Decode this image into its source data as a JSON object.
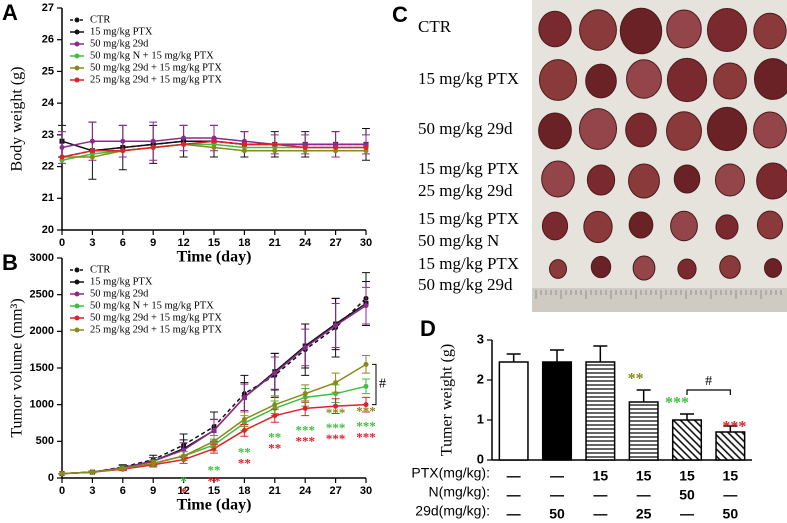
{
  "chart_data": [
    {
      "type": "line",
      "panel": "A",
      "ylabel": "Body weight (g)",
      "xlabel": "Time (day)",
      "x": [
        0,
        3,
        6,
        9,
        12,
        15,
        18,
        21,
        24,
        27,
        30
      ],
      "xlim": [
        0,
        30
      ],
      "xticks": [
        0,
        3,
        6,
        9,
        12,
        15,
        18,
        21,
        24,
        27,
        30
      ],
      "ylim": [
        20,
        27
      ],
      "yticks": [
        20,
        21,
        22,
        23,
        24,
        25,
        26,
        27
      ],
      "series": [
        {
          "name": "CTR",
          "color": "#111111",
          "dash": true,
          "marker": "circle",
          "values": [
            22.3,
            22.5,
            22.6,
            22.7,
            22.8,
            22.8,
            22.7,
            22.7,
            22.7,
            22.7,
            22.7
          ]
        },
        {
          "name": "15 mg/kg PTX",
          "color": "#111111",
          "dash": false,
          "marker": "square",
          "values": [
            22.8,
            22.5,
            22.6,
            22.7,
            22.8,
            22.8,
            22.7,
            22.7,
            22.7,
            22.7,
            22.7
          ],
          "errors": [
            0.5,
            0.9,
            0.7,
            0.6,
            0.5,
            0.5,
            0.4,
            0.4,
            0.4,
            0.4,
            0.5
          ]
        },
        {
          "name": "50 mg/kg 29d",
          "color": "#8e2a8e",
          "dash": false,
          "marker": "circle",
          "values": [
            22.6,
            22.8,
            22.8,
            22.8,
            22.9,
            22.9,
            22.8,
            22.7,
            22.7,
            22.7,
            22.7
          ],
          "errors": [
            0.5,
            0.6,
            0.5,
            0.6,
            0.4,
            0.4,
            0.3,
            0.3,
            0.3,
            0.4,
            0.3
          ]
        },
        {
          "name": "50 mg/kg N + 15 mg/kg PTX",
          "color": "#3fbf3f",
          "dash": false,
          "marker": "circle",
          "values": [
            22.2,
            22.4,
            22.5,
            22.6,
            22.7,
            22.7,
            22.6,
            22.6,
            22.6,
            22.6,
            22.6
          ]
        },
        {
          "name": "50 mg/kg 29d + 15 mg/kg PTX",
          "color": "#8a8a1a",
          "dash": false,
          "marker": "circle",
          "values": [
            22.3,
            22.3,
            22.5,
            22.6,
            22.7,
            22.6,
            22.5,
            22.5,
            22.5,
            22.5,
            22.5
          ]
        },
        {
          "name": "25 mg/kg 29d + 15 mg/kg PTX",
          "color": "#e0202a",
          "dash": false,
          "marker": "circle",
          "values": [
            22.3,
            22.5,
            22.5,
            22.6,
            22.7,
            22.8,
            22.7,
            22.7,
            22.6,
            22.6,
            22.6
          ]
        }
      ]
    },
    {
      "type": "line",
      "panel": "B",
      "ylabel": "Tumor volume (mm³)",
      "xlabel": "Time (day)",
      "x": [
        0,
        3,
        6,
        9,
        12,
        15,
        18,
        21,
        24,
        27,
        30
      ],
      "xlim": [
        0,
        30
      ],
      "xticks": [
        0,
        3,
        6,
        9,
        12,
        15,
        18,
        21,
        24,
        27,
        30
      ],
      "ylim": [
        0,
        3000
      ],
      "yticks": [
        0,
        500,
        1000,
        1500,
        2000,
        2500,
        3000
      ],
      "bracket_label": "#",
      "series": [
        {
          "name": "CTR",
          "color": "#111111",
          "dash": true,
          "marker": "circle",
          "values": [
            60,
            80,
            150,
            250,
            450,
            700,
            1150,
            1400,
            1750,
            2050,
            2450
          ],
          "errors": [
            0,
            10,
            30,
            60,
            150,
            200,
            250,
            300,
            350,
            400,
            350
          ]
        },
        {
          "name": "15 mg/kg PTX",
          "color": "#111111",
          "dash": false,
          "marker": "square",
          "values": [
            60,
            80,
            140,
            230,
            400,
            650,
            1100,
            1450,
            1800,
            2100,
            2380
          ],
          "errors": [
            0,
            10,
            30,
            50,
            120,
            150,
            200,
            250,
            300,
            350,
            300
          ]
        },
        {
          "name": "50 mg/kg 29d",
          "color": "#8e2a8e",
          "dash": false,
          "marker": "circle",
          "values": [
            60,
            80,
            140,
            230,
            380,
            650,
            1100,
            1430,
            1780,
            2080,
            2350
          ],
          "errors": [
            0,
            10,
            30,
            50,
            100,
            150,
            180,
            220,
            250,
            300,
            250
          ]
        },
        {
          "name": "50 mg/kg N + 15 mg/kg PTX",
          "color": "#3fbf3f",
          "dash": false,
          "marker": "circle",
          "values": [
            60,
            80,
            130,
            200,
            300,
            450,
            750,
            950,
            1100,
            1150,
            1250
          ],
          "errors": [
            0,
            10,
            20,
            40,
            60,
            80,
            100,
            100,
            120,
            120,
            100
          ],
          "significance": [
            null,
            null,
            null,
            null,
            "*",
            "**",
            "**",
            "**",
            "***",
            "***",
            "***"
          ]
        },
        {
          "name": "50 mg/kg 29d + 15 mg/kg PTX",
          "color": "#e0202a",
          "dash": false,
          "marker": "circle",
          "values": [
            60,
            80,
            120,
            180,
            250,
            400,
            650,
            850,
            950,
            980,
            1000
          ],
          "errors": [
            0,
            10,
            20,
            30,
            50,
            60,
            80,
            90,
            100,
            100,
            100
          ],
          "significance": [
            null,
            null,
            null,
            null,
            "*",
            "**",
            "**",
            "**",
            "***",
            "***",
            "***"
          ]
        },
        {
          "name": "25 mg/kg 29d + 15 mg/kg PTX",
          "color": "#8a8a1a",
          "dash": false,
          "marker": "circle",
          "values": [
            60,
            80,
            130,
            200,
            300,
            500,
            800,
            1000,
            1150,
            1300,
            1550
          ],
          "errors": [
            0,
            10,
            20,
            40,
            60,
            80,
            100,
            120,
            120,
            130,
            120
          ],
          "significance": [
            null,
            null,
            null,
            null,
            null,
            null,
            null,
            null,
            null,
            "***",
            "***"
          ]
        }
      ]
    },
    {
      "type": "bar",
      "panel": "D",
      "ylabel": "Tumer weight (g)",
      "categories": [
        null,
        null,
        null,
        null,
        null,
        null
      ],
      "values": [
        2.45,
        2.45,
        2.45,
        1.45,
        1.0,
        0.7
      ],
      "errors": [
        0.2,
        0.3,
        0.4,
        0.3,
        0.15,
        0.15
      ],
      "patterns": [
        "none",
        "solid",
        "horizontal",
        "horizontal",
        "diagonal",
        "diagonal"
      ],
      "color": "#000000",
      "ylim": [
        0,
        3
      ],
      "yticks": [
        0,
        1,
        2,
        3
      ],
      "significance": [
        null,
        null,
        null,
        "**",
        "***",
        "***"
      ],
      "significance_colors": [
        null,
        null,
        null,
        "#8a8a1a",
        "#3fbf3f",
        "#e0202a"
      ],
      "bracket_label": "#",
      "treatment_table": [
        {
          "label": "PTX(mg/kg):",
          "cells": [
            "—",
            "—",
            "15",
            "15",
            "15",
            "15"
          ]
        },
        {
          "label": "N(mg/kg):",
          "cells": [
            "—",
            "—",
            "—",
            "—",
            "50",
            "—"
          ]
        },
        {
          "label": "29d(mg/kg):",
          "cells": [
            "—",
            "50",
            "—",
            "25",
            "—",
            "50"
          ]
        }
      ]
    }
  ],
  "photo_panel": {
    "panel": "C",
    "groups": [
      [
        "CTR"
      ],
      [
        "15 mg/kg PTX"
      ],
      [
        "50 mg/kg 29d"
      ],
      [
        "15 mg/kg PTX",
        "25 mg/kg 29d"
      ],
      [
        "15 mg/kg PTX",
        "50 mg/kg N"
      ],
      [
        "15 mg/kg PTX",
        "50 mg/kg 29d"
      ]
    ]
  }
}
